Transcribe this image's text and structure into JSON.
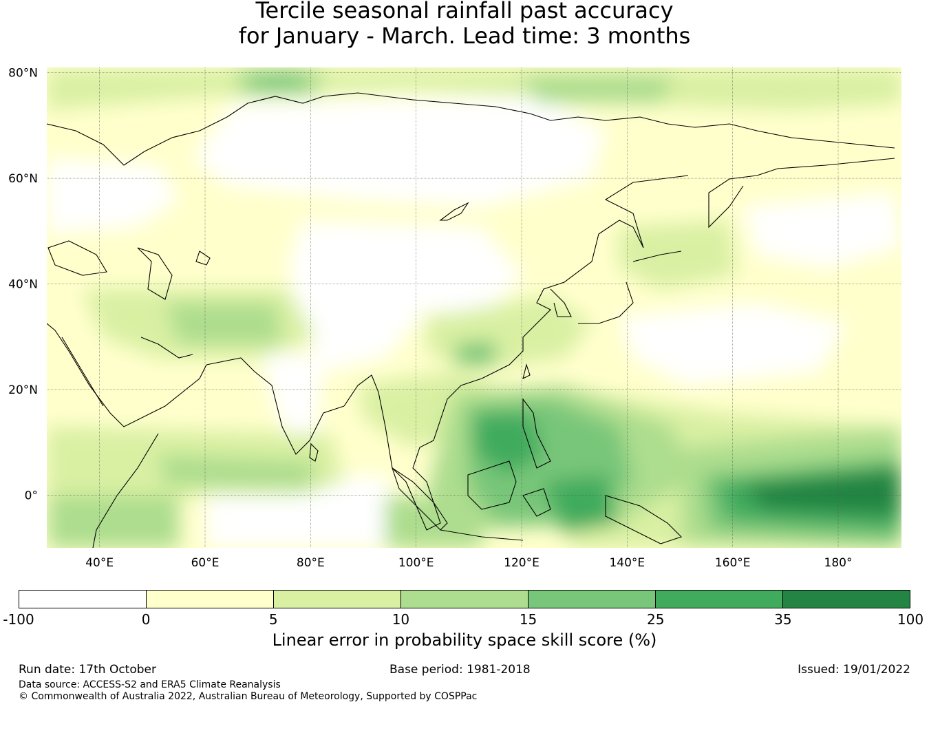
{
  "title": {
    "line1": "Tercile seasonal rainfall past accuracy",
    "line2": "for January - March. Lead time: 3 months"
  },
  "map": {
    "lon_range": [
      30,
      192
    ],
    "lat_range": [
      -10,
      81
    ],
    "lat_ticks": [
      {
        "value": 80,
        "label": "80°N"
      },
      {
        "value": 60,
        "label": "60°N"
      },
      {
        "value": 40,
        "label": "40°N"
      },
      {
        "value": 20,
        "label": "20°N"
      },
      {
        "value": 0,
        "label": "0°"
      }
    ],
    "lon_ticks": [
      {
        "value": 40,
        "label": "40°E"
      },
      {
        "value": 60,
        "label": "60°E"
      },
      {
        "value": 80,
        "label": "80°E"
      },
      {
        "value": 100,
        "label": "100°E"
      },
      {
        "value": 120,
        "label": "120°E"
      },
      {
        "value": 140,
        "label": "140°E"
      },
      {
        "value": 160,
        "label": "160°E"
      },
      {
        "value": 180,
        "label": "180°"
      }
    ],
    "gridlines": true,
    "field_colors": [
      "#ffffff",
      "#ffffcc",
      "#d9f0a3",
      "#addd8e",
      "#78c679",
      "#41ab5d",
      "#238443"
    ]
  },
  "colorbar": {
    "bounds": [
      "-100",
      "0",
      "5",
      "10",
      "15",
      "25",
      "35",
      "100"
    ],
    "colors": [
      "#ffffff",
      "#ffffcc",
      "#d9f0a3",
      "#addd8e",
      "#78c679",
      "#41ab5d",
      "#238443"
    ],
    "label": "Linear error in probability space skill score (%)"
  },
  "footer": {
    "run_date": "Run date: 17th October",
    "base_period": "Base period: 1981-2018",
    "issued": "Issued: 19/01/2022",
    "data_source": "Data source: ACCESS-S2 and ERA5 Climate Reanalysis",
    "copyright": "© Commonwealth of Australia 2022, Australian Bureau of Meteorology, Supported by COSPPac"
  }
}
